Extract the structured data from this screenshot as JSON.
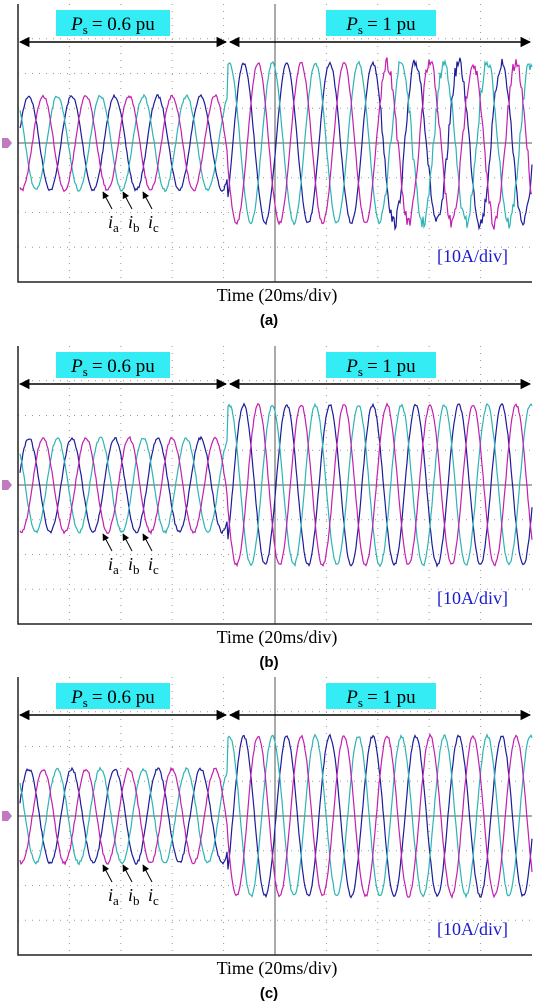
{
  "panels": [
    {
      "annotations": [
        {
          "symbol": "P",
          "subscript": "s",
          "text": "= 0.6 pu"
        },
        {
          "symbol": "P",
          "subscript": "s",
          "text": "= 1 pu"
        }
      ],
      "currents": [
        {
          "symbol": "i",
          "subscript": "a"
        },
        {
          "symbol": "i",
          "subscript": "b"
        },
        {
          "symbol": "i",
          "subscript": "c"
        }
      ],
      "scale_label": "[10A/div]",
      "x_axis_label": "Time (20ms/div)",
      "caption": "(a)"
    },
    {
      "annotations": [
        {
          "symbol": "P",
          "subscript": "s",
          "text": "= 0.6 pu"
        },
        {
          "symbol": "P",
          "subscript": "s",
          "text": "= 1 pu"
        }
      ],
      "currents": [
        {
          "symbol": "i",
          "subscript": "a"
        },
        {
          "symbol": "i",
          "subscript": "b"
        },
        {
          "symbol": "i",
          "subscript": "c"
        }
      ],
      "scale_label": "[10A/div]",
      "x_axis_label": "Time (20ms/div)",
      "caption": "(b)"
    },
    {
      "annotations": [
        {
          "symbol": "P",
          "subscript": "s",
          "text": "= 0.6 pu"
        },
        {
          "symbol": "P",
          "subscript": "s",
          "text": "= 1 pu"
        }
      ],
      "currents": [
        {
          "symbol": "i",
          "subscript": "a"
        },
        {
          "symbol": "i",
          "subscript": "b"
        },
        {
          "symbol": "i",
          "subscript": "c"
        }
      ],
      "scale_label": "[10A/div]",
      "x_axis_label": "Time (20ms/div)",
      "caption": "(c)"
    }
  ]
}
